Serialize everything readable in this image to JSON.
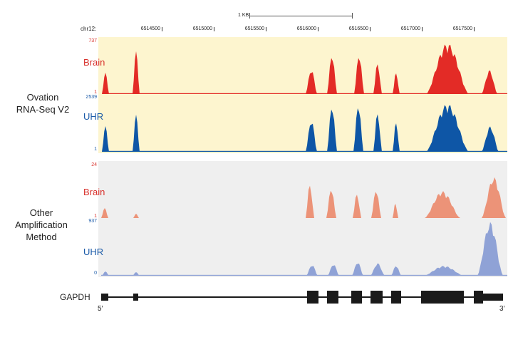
{
  "colors": {
    "ovation_bg": "#fdf5cf",
    "other_bg": "#efefef",
    "brain_dark": "#e32b26",
    "uhr_dark": "#0e56a6",
    "brain_light": "#ec9378",
    "uhr_light": "#8fa2d6",
    "brain_label": "#d8302b",
    "uhr_label": "#1a5aa8",
    "gene": "#1a1a1a"
  },
  "ruler": {
    "scale_label": "1 KB",
    "chrom_label": "chr12:",
    "ticks": [
      "6514500",
      "6515000",
      "6515500",
      "6516000",
      "6516500",
      "6517000",
      "6517500"
    ]
  },
  "groups": [
    {
      "label_lines": [
        "Ovation",
        "RNA-Seq V2"
      ],
      "tracks": [
        {
          "name": "Brain",
          "max": "737",
          "min": "1",
          "color_key": "brain_dark"
        },
        {
          "name": "UHR",
          "max": "2539",
          "min": "1",
          "color_key": "uhr_dark"
        }
      ]
    },
    {
      "label_lines": [
        "Other",
        "Amplification",
        "Method"
      ],
      "tracks": [
        {
          "name": "Brain",
          "max": "24",
          "min": "1",
          "color_key": "brain_light"
        },
        {
          "name": "UHR",
          "max": "937",
          "min": "0",
          "color_key": "uhr_light"
        }
      ]
    }
  ],
  "gene": {
    "name": "GAPDH",
    "five_prime": "5′",
    "three_prime": "3′"
  }
}
